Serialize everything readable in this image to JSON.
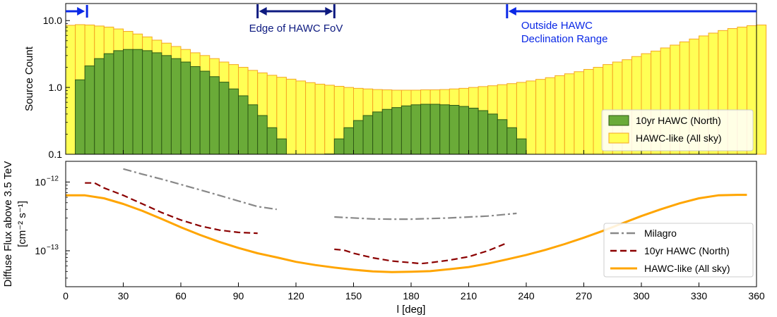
{
  "colors": {
    "hawc_fill": "#6aab38",
    "hawc_edge": "#2f5a14",
    "allsky_fill": "#ffff55",
    "allsky_edge": "#f5a623",
    "milagro": "#888888",
    "hawc10": "#8b0000",
    "hawclike": "#ffa500",
    "fov_annot": "#0d1a80",
    "range_annot": "#0a28e6"
  },
  "chart_data": [
    {
      "type": "bar",
      "subplot": "top",
      "ylabel": "Source Count",
      "yscale": "log",
      "ylim": [
        0.1,
        18
      ],
      "xlim": [
        0,
        360
      ],
      "bin_width": 5,
      "yticks": [
        0.1,
        1.0,
        10.0
      ],
      "ytick_labels": [
        "0.1",
        "1.0",
        "10.0"
      ],
      "series": [
        {
          "name": "HAWC-like (All sky)",
          "bins_start": 0,
          "values": [
            8.5,
            8.7,
            8.6,
            8.3,
            8.0,
            7.5,
            6.9,
            6.3,
            5.7,
            5.1,
            4.6,
            4.1,
            3.7,
            3.3,
            3.0,
            2.7,
            2.4,
            2.2,
            2.0,
            1.8,
            1.65,
            1.52,
            1.42,
            1.33,
            1.25,
            1.18,
            1.12,
            1.08,
            1.04,
            1.0,
            0.97,
            0.95,
            0.93,
            0.92,
            0.91,
            0.91,
            0.91,
            0.92,
            0.92,
            0.93,
            0.95,
            0.97,
            1.0,
            1.03,
            1.06,
            1.1,
            1.14,
            1.19,
            1.25,
            1.32,
            1.4,
            1.5,
            1.6,
            1.72,
            1.86,
            2.0,
            2.2,
            2.4,
            2.6,
            2.9,
            3.2,
            3.5,
            3.9,
            4.3,
            4.8,
            5.3,
            5.9,
            6.5,
            7.1,
            7.6,
            8.0,
            8.4,
            8.6
          ]
        },
        {
          "name": "10yr HAWC (North)",
          "bins_start": 5,
          "values": [
            1.3,
            2.1,
            2.7,
            3.2,
            3.55,
            3.7,
            3.7,
            3.55,
            3.3,
            3.0,
            2.7,
            2.4,
            2.05,
            1.75,
            1.45,
            1.2,
            0.95,
            0.75,
            0.55,
            0.38,
            0.25,
            0.17,
            0.0,
            0.0,
            0.0,
            0.0,
            0.101,
            0.17,
            0.25,
            0.32,
            0.38,
            0.43,
            0.47,
            0.5,
            0.53,
            0.55,
            0.56,
            0.56,
            0.55,
            0.54,
            0.52,
            0.49,
            0.45,
            0.4,
            0.33,
            0.25,
            0.17
          ]
        }
      ],
      "legend": [
        "10yr HAWC (North)",
        "HAWC-like (All sky)"
      ],
      "legend_position": "lower-right",
      "annotations": {
        "fov": {
          "text": "Edge of HAWC FoV",
          "range": [
            100,
            140
          ]
        },
        "range": {
          "line1": "Outside HAWC",
          "line2": "Declination Range",
          "range": [
            230,
            360
          ],
          "left_range": [
            0,
            10
          ]
        }
      }
    },
    {
      "type": "line",
      "subplot": "bottom",
      "xlabel": "l [deg]",
      "ylabel_line1": "Diffuse Flux above 3.5 TeV",
      "ylabel_line2": "[cm⁻² s⁻¹]",
      "yscale": "log",
      "ylim": [
        3e-14,
        2e-12
      ],
      "xlim": [
        0,
        360
      ],
      "xticks": [
        0,
        30,
        60,
        90,
        120,
        150,
        180,
        210,
        240,
        270,
        300,
        330,
        360
      ],
      "ytick_mantissa": "10",
      "yticks": [
        {
          "value": 1e-12,
          "exponent": "−12"
        },
        {
          "value": 1e-13,
          "exponent": "−13"
        }
      ],
      "series": [
        {
          "name": "Milagro",
          "style": "dashdot",
          "segments": [
            [
              [
                30,
                1.55e-12
              ],
              [
                40,
                1.3e-12
              ],
              [
                50,
                1.1e-12
              ],
              [
                60,
                9.2e-13
              ],
              [
                70,
                7.7e-13
              ],
              [
                80,
                6.4e-13
              ],
              [
                90,
                5.3e-13
              ],
              [
                100,
                4.4e-13
              ],
              [
                110,
                4e-13
              ]
            ],
            [
              [
                140,
                3.1e-13
              ],
              [
                160,
                2.9e-13
              ],
              [
                170,
                2.88e-13
              ],
              [
                180,
                2.88e-13
              ],
              [
                200,
                3e-13
              ],
              [
                220,
                3.2e-13
              ],
              [
                235,
                3.5e-13
              ]
            ]
          ]
        },
        {
          "name": "10yr HAWC (North)",
          "style": "dashed",
          "segments": [
            [
              [
                10,
                9.7e-13
              ],
              [
                15,
                9.7e-13
              ],
              [
                20,
                8.2e-13
              ],
              [
                30,
                6.4e-13
              ],
              [
                40,
                4.8e-13
              ],
              [
                50,
                3.6e-13
              ],
              [
                60,
                2.8e-13
              ],
              [
                70,
                2.3e-13
              ],
              [
                80,
                2e-13
              ],
              [
                90,
                1.85e-13
              ],
              [
                100,
                1.8e-13
              ]
            ],
            [
              [
                140,
                1.05e-13
              ],
              [
                145,
                1.02e-13
              ],
              [
                150,
                9.2e-14
              ],
              [
                160,
                7.9e-14
              ],
              [
                170,
                7.1e-14
              ],
              [
                180,
                6.7e-14
              ],
              [
                185,
                6.5e-14
              ],
              [
                190,
                6.7e-14
              ],
              [
                200,
                7.3e-14
              ],
              [
                210,
                8.2e-14
              ],
              [
                220,
                1e-13
              ],
              [
                230,
                1.3e-13
              ]
            ]
          ]
        },
        {
          "name": "HAWC-like (All sky)",
          "style": "solid",
          "segments": [
            [
              [
                0,
                6.4e-13
              ],
              [
                10,
                6.4e-13
              ],
              [
                20,
                5.8e-13
              ],
              [
                30,
                4.8e-13
              ],
              [
                40,
                3.8e-13
              ],
              [
                50,
                2.9e-13
              ],
              [
                60,
                2.2e-13
              ],
              [
                70,
                1.7e-13
              ],
              [
                80,
                1.35e-13
              ],
              [
                90,
                1.1e-13
              ],
              [
                100,
                9.2e-14
              ],
              [
                110,
                8e-14
              ],
              [
                120,
                6.9e-14
              ],
              [
                130,
                6.2e-14
              ],
              [
                140,
                5.7e-14
              ],
              [
                150,
                5.3e-14
              ],
              [
                160,
                5e-14
              ],
              [
                170,
                4.9e-14
              ],
              [
                180,
                4.95e-14
              ],
              [
                190,
                5.05e-14
              ],
              [
                200,
                5.4e-14
              ],
              [
                210,
                5.8e-14
              ],
              [
                220,
                6.5e-14
              ],
              [
                230,
                7.5e-14
              ],
              [
                240,
                8.7e-14
              ],
              [
                250,
                1.03e-13
              ],
              [
                260,
                1.25e-13
              ],
              [
                270,
                1.55e-13
              ],
              [
                280,
                1.95e-13
              ],
              [
                290,
                2.5e-13
              ],
              [
                300,
                3.2e-13
              ],
              [
                310,
                4e-13
              ],
              [
                320,
                4.9e-13
              ],
              [
                330,
                5.8e-13
              ],
              [
                340,
                6.4e-13
              ],
              [
                350,
                6.5e-13
              ],
              [
                355,
                6.5e-13
              ]
            ]
          ]
        }
      ],
      "legend": [
        "Milagro",
        "10yr HAWC (North)",
        "HAWC-like (All sky)"
      ],
      "legend_position": "lower-right"
    }
  ]
}
